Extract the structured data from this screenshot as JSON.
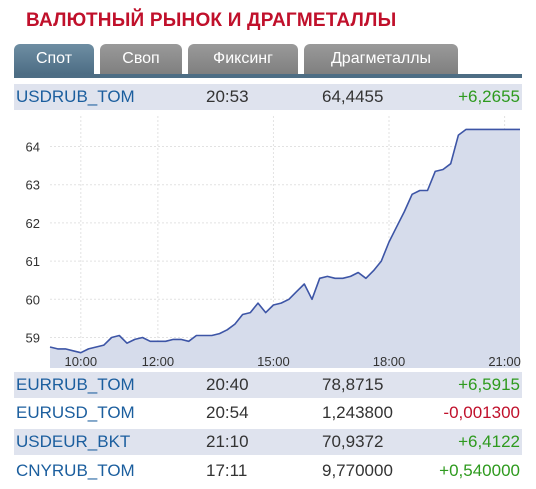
{
  "header": {
    "title": "ВАЛЮТНЫЙ РЫНОК И ДРАГМЕТАЛЛЫ"
  },
  "tabs": [
    {
      "label": "Спот",
      "active": true
    },
    {
      "label": "Своп",
      "active": false
    },
    {
      "label": "Фиксинг",
      "active": false
    },
    {
      "label": "Драгметаллы",
      "active": false
    }
  ],
  "main_quote": {
    "ticker": "USDRUB_TOM",
    "time": "20:53",
    "value": "64,4455",
    "change": "+6,2655"
  },
  "quotes": [
    {
      "ticker": "EURRUB_TOM",
      "time": "20:40",
      "value": "78,8715",
      "change": "+6,5915"
    },
    {
      "ticker": "EURUSD_TOM",
      "time": "20:54",
      "value": "1,243800",
      "change": "-0,001300"
    },
    {
      "ticker": "USDEUR_BKT",
      "time": "21:10",
      "value": "70,9372",
      "change": "+6,4122"
    },
    {
      "ticker": "CNYRUB_TOM",
      "time": "17:11",
      "value": "9,770000",
      "change": "+0,540000"
    }
  ],
  "colors": {
    "accent": "#c0102b",
    "positive": "#2e9a1e",
    "negative": "#c0102b",
    "ticker": "#1b5e9e",
    "area": "#d6dceb",
    "line": "#3d55a6"
  },
  "chart_data": {
    "type": "area",
    "ylim": [
      58.2,
      64.8
    ],
    "xlim": [
      9.2,
      21.4
    ],
    "y_ticks": [
      "59",
      "60",
      "61",
      "62",
      "63",
      "64"
    ],
    "x_ticks": [
      "10:00",
      "12:00",
      "15:00",
      "18:00",
      "21:00"
    ],
    "grid": true,
    "x": [
      9.2,
      9.4,
      9.6,
      9.8,
      10.0,
      10.2,
      10.4,
      10.6,
      10.8,
      11.0,
      11.2,
      11.4,
      11.6,
      11.8,
      12.0,
      12.2,
      12.4,
      12.6,
      12.8,
      13.0,
      13.2,
      13.4,
      13.6,
      13.8,
      14.0,
      14.2,
      14.4,
      14.6,
      14.8,
      15.0,
      15.2,
      15.4,
      15.6,
      15.8,
      16.0,
      16.2,
      16.4,
      16.6,
      16.8,
      17.0,
      17.2,
      17.4,
      17.6,
      17.8,
      18.0,
      18.2,
      18.4,
      18.6,
      18.8,
      19.0,
      19.2,
      19.4,
      19.6,
      19.8,
      20.0,
      20.2,
      20.4,
      20.6,
      20.8,
      21.0,
      21.2,
      21.4
    ],
    "y": [
      58.75,
      58.7,
      58.7,
      58.65,
      58.6,
      58.7,
      58.75,
      58.8,
      59.0,
      59.05,
      58.85,
      58.95,
      59.0,
      58.9,
      58.9,
      58.9,
      58.95,
      58.95,
      58.9,
      59.05,
      59.05,
      59.05,
      59.1,
      59.2,
      59.35,
      59.6,
      59.65,
      59.9,
      59.65,
      59.85,
      59.9,
      60.0,
      60.2,
      60.4,
      60.0,
      60.55,
      60.6,
      60.55,
      60.55,
      60.6,
      60.7,
      60.55,
      60.75,
      61.0,
      61.5,
      61.9,
      62.3,
      62.75,
      62.85,
      62.85,
      63.35,
      63.4,
      63.55,
      64.3,
      64.45,
      64.45,
      64.45,
      64.45,
      64.45,
      64.45,
      64.45,
      64.45
    ]
  }
}
